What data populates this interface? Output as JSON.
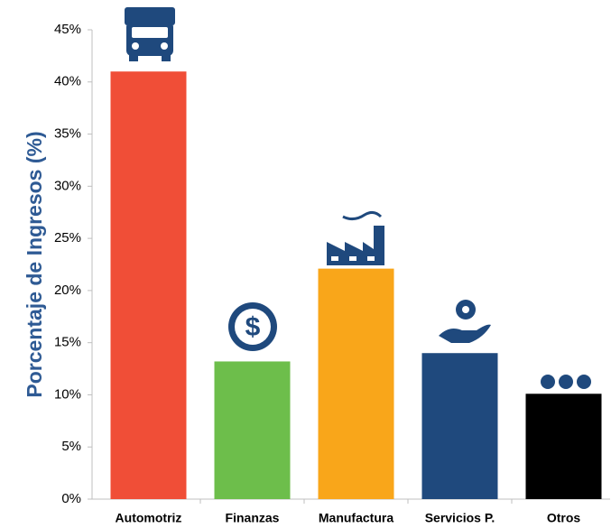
{
  "chart_data": {
    "type": "bar",
    "y_label": "Porcentaje de Ingresos (%)",
    "categories": [
      "Automotriz",
      "Finanzas",
      "Manufactura",
      "Servicios P.",
      "Otros"
    ],
    "values": [
      41,
      13.2,
      22.1,
      14,
      10.1
    ],
    "colors": [
      "#f04e37",
      "#6dbe4b",
      "#f9a61a",
      "#1f497d",
      "#000000"
    ],
    "ylim": [
      0,
      45
    ],
    "yticks": [
      {
        "value": 0,
        "label": "0%"
      },
      {
        "value": 5,
        "label": "5%"
      },
      {
        "value": 10,
        "label": "10%"
      },
      {
        "value": 15,
        "label": "15%"
      },
      {
        "value": 20,
        "label": "20%"
      },
      {
        "value": 25,
        "label": "25%"
      },
      {
        "value": 30,
        "label": "30%"
      },
      {
        "value": 35,
        "label": "35%"
      },
      {
        "value": 40,
        "label": "40%"
      },
      {
        "value": 45,
        "label": "45%"
      }
    ],
    "grid": false
  }
}
